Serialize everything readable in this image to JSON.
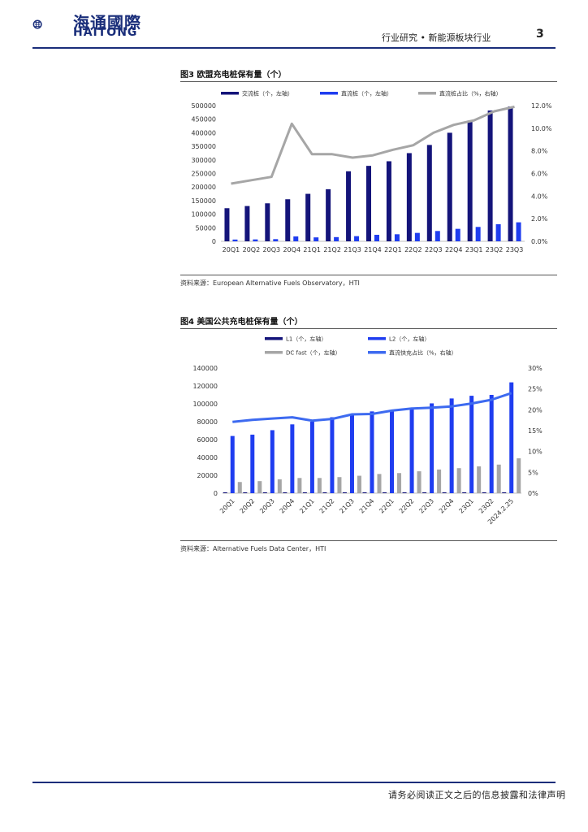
{
  "header": {
    "logo_cn": "海通國際",
    "logo_en": "HAITONG",
    "section": "行业研究 • 新能源板块行业",
    "page": "3"
  },
  "footer": {
    "disclaimer": "请务必阅读正文之后的信息披露和法律声明"
  },
  "fig3": {
    "title": "图3  欧盟充电桩保有量（个）",
    "source": "资料来源：European Alternative Fuels Observatory，HTI"
  },
  "fig4": {
    "title": "图4  美国公共充电桩保有量（个）",
    "source": "资料来源：Alternative Fuels Data Center，HTI"
  },
  "colors": {
    "navy": "#14147a",
    "blue": "#1f3df0",
    "gray": "#a6a6a6",
    "lightblue": "#3d6af0",
    "brand": "#1a2e7a"
  },
  "chart_data": [
    {
      "type": "bar",
      "title": "欧盟充电桩保有量（个）",
      "categories": [
        "20Q1",
        "20Q2",
        "20Q3",
        "20Q4",
        "21Q1",
        "21Q2",
        "21Q3",
        "21Q4",
        "22Q1",
        "22Q2",
        "22Q3",
        "22Q4",
        "23Q1",
        "23Q2",
        "23Q3"
      ],
      "series": [
        {
          "name": "交流桩（个，左轴）",
          "kind": "bar",
          "axis": "left",
          "color": "#14147a",
          "values": [
            122000,
            130000,
            140000,
            155000,
            175000,
            192000,
            258000,
            278000,
            295000,
            325000,
            355000,
            400000,
            445000,
            482000,
            497000
          ]
        },
        {
          "name": "直流桩（个，左轴）",
          "kind": "bar",
          "axis": "left",
          "color": "#1f3df0",
          "values": [
            6500,
            7000,
            8000,
            18000,
            14500,
            15500,
            19000,
            24000,
            26000,
            31000,
            38000,
            46000,
            53000,
            63000,
            70000
          ]
        },
        {
          "name": "直流桩占比（%，右轴）",
          "kind": "line",
          "axis": "right",
          "color": "#a6a6a6",
          "values": [
            5.1,
            5.4,
            5.7,
            10.4,
            7.7,
            7.7,
            7.4,
            7.6,
            8.1,
            8.5,
            9.6,
            10.3,
            10.7,
            11.5,
            11.9
          ]
        }
      ],
      "yleft": {
        "min": 0,
        "max": 500000,
        "ticks": [
          "0",
          "50000",
          "100000",
          "150000",
          "200000",
          "250000",
          "300000",
          "350000",
          "400000",
          "450000",
          "500000"
        ]
      },
      "yright": {
        "min": 0,
        "max": 12,
        "ticks": [
          "0.0%",
          "2.0%",
          "4.0%",
          "6.0%",
          "8.0%",
          "10.0%",
          "12.0%"
        ]
      },
      "legend_position": "top"
    },
    {
      "type": "bar",
      "title": "美国公共充电桩保有量（个）",
      "categories": [
        "20Q1",
        "20Q2",
        "20Q3",
        "20Q4",
        "21Q1",
        "21Q2",
        "21Q3",
        "21Q4",
        "22Q1",
        "22Q2",
        "22Q3",
        "22Q4",
        "23Q1",
        "23Q2",
        "2024.2.25"
      ],
      "series": [
        {
          "name": "L1（个，左轴）",
          "kind": "bar",
          "axis": "left",
          "color": "#14147a",
          "values": [
            1000,
            1000,
            1000,
            1000,
            1000,
            1000,
            1000,
            1000,
            1000,
            1000,
            1000,
            1000,
            1000,
            1000,
            1000
          ]
        },
        {
          "name": "L2（个，左轴）",
          "kind": "bar",
          "axis": "left",
          "color": "#1f3df0",
          "values": [
            64000,
            65500,
            70500,
            77000,
            80000,
            85000,
            87500,
            91500,
            92500,
            95500,
            100500,
            106000,
            109000,
            110000,
            124000
          ]
        },
        {
          "name": "DC fast（个，左轴）",
          "kind": "bar",
          "axis": "left",
          "color": "#a6a6a6",
          "values": [
            12500,
            13500,
            15500,
            17000,
            17000,
            18000,
            19500,
            21500,
            22500,
            24500,
            26500,
            28000,
            30000,
            32000,
            39000
          ]
        },
        {
          "name": "直流快充占比（%，右轴）",
          "kind": "line",
          "axis": "right",
          "color": "#3d6af0",
          "values": [
            17.1,
            17.6,
            17.9,
            18.2,
            17.4,
            17.8,
            18.9,
            19.0,
            19.8,
            20.3,
            20.5,
            20.8,
            21.5,
            22.4,
            24.0
          ]
        }
      ],
      "yleft": {
        "min": 0,
        "max": 140000,
        "ticks": [
          "0",
          "20000",
          "40000",
          "60000",
          "80000",
          "100000",
          "120000",
          "140000"
        ]
      },
      "yright": {
        "min": 0,
        "max": 30,
        "ticks": [
          "0%",
          "5%",
          "10%",
          "15%",
          "20%",
          "25%",
          "30%"
        ]
      },
      "legend_position": "top"
    }
  ]
}
